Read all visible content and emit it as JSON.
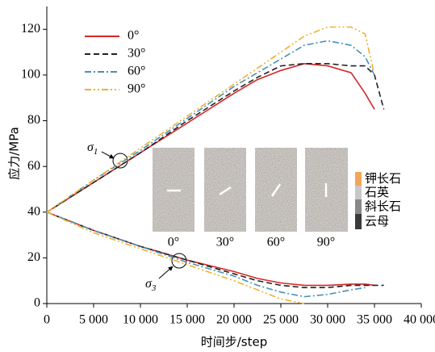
{
  "chart_data": {
    "type": "line",
    "x_label": "时间步/step",
    "y_label": "应力/MPa",
    "xlim": [
      0,
      40000
    ],
    "ylim": [
      0,
      130
    ],
    "xticks": [
      0,
      {
        "value": 5000,
        "label": "5 000"
      },
      {
        "value": 10000,
        "label": "10 000"
      },
      {
        "value": 15000,
        "label": "15 000"
      },
      {
        "value": 20000,
        "label": "20 000"
      },
      {
        "value": 25000,
        "label": "25 000"
      },
      {
        "value": 30000,
        "label": "30 000"
      },
      {
        "value": 35000,
        "label": "35 000"
      },
      {
        "value": 40000,
        "label": "40 000"
      }
    ],
    "yticks": [
      0,
      20,
      40,
      60,
      80,
      100,
      120
    ],
    "x": [
      0,
      5000,
      10000,
      15000,
      20000,
      22500,
      25000,
      27500,
      30000,
      32500,
      34000,
      35000,
      36000
    ],
    "series": [
      {
        "name": "0°",
        "color": "#d62728",
        "dash": "solid",
        "upper": [
          40,
          53,
          66,
          79,
          92,
          98,
          102,
          105,
          104,
          101,
          92,
          85,
          null
        ],
        "lower": [
          40,
          32,
          25,
          19,
          14,
          11,
          9,
          8,
          8,
          8.5,
          8.5,
          8,
          null
        ]
      },
      {
        "name": "30°",
        "color": "#222222",
        "dash": "dash",
        "upper": [
          40,
          53,
          66,
          80,
          93,
          99,
          104,
          105,
          105,
          104,
          104,
          100,
          85
        ],
        "lower": [
          40,
          32,
          25,
          19,
          13,
          10,
          8,
          7,
          7,
          8,
          8,
          8,
          8
        ]
      },
      {
        "name": "60°",
        "color": "#4a90b8",
        "dash": "dashdot",
        "upper": [
          40,
          54,
          67,
          81,
          95,
          101,
          107,
          113,
          115,
          113,
          108,
          100,
          null
        ],
        "lower": [
          40,
          32,
          25,
          18,
          12,
          8,
          5,
          3,
          4,
          6,
          7,
          null,
          null
        ]
      },
      {
        "name": "90°",
        "color": "#f0b030",
        "dash": "dashdotdot",
        "upper": [
          40,
          54,
          68,
          82,
          96,
          103,
          110,
          117,
          121,
          121,
          118,
          100,
          null
        ],
        "lower": [
          40,
          31,
          24,
          17,
          10,
          6,
          2,
          0,
          null,
          null,
          null,
          null,
          null
        ]
      }
    ],
    "annotations": [
      {
        "symbol": "σ",
        "sub": "1"
      },
      {
        "symbol": "σ",
        "sub": "3"
      }
    ],
    "inset": {
      "labels": [
        "0°",
        "30°",
        "60°",
        "90°"
      ],
      "minerals": [
        {
          "name": "钾长石",
          "color": "#f2a65a"
        },
        {
          "name": "石英",
          "color": "#c8c8c8"
        },
        {
          "name": "斜长石",
          "color": "#888888"
        },
        {
          "name": "云母",
          "color": "#3a3a3a"
        }
      ]
    }
  }
}
